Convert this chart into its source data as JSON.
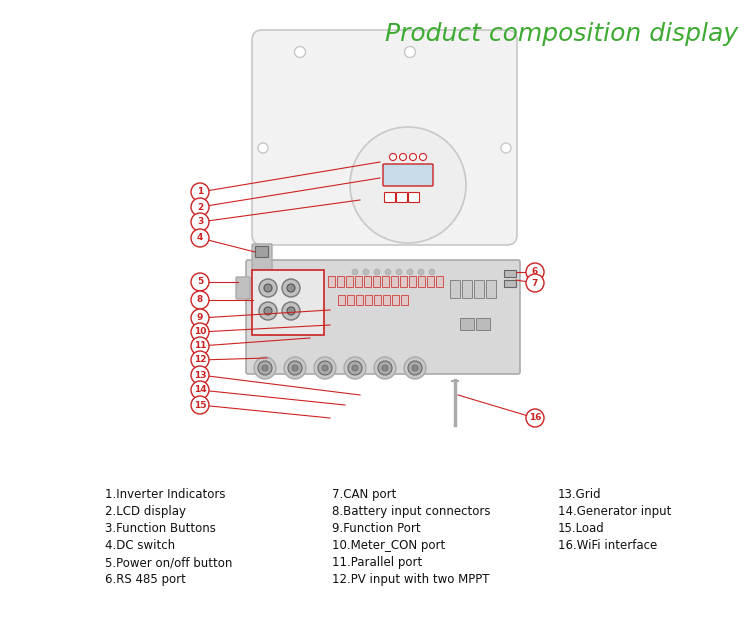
{
  "title": "Product composition display",
  "title_color": "#3daa32",
  "title_fontsize": 18,
  "bg_color": "#ffffff",
  "legend_col1": [
    "1.Inverter Indicators",
    "2.LCD display",
    "3.Function Buttons",
    "4.DC switch",
    "5.Power on/off button",
    "6.RS 485 port"
  ],
  "legend_col2": [
    "7.CAN port",
    "8.Battery input connectors",
    "9.Function Port",
    "10.Meter_CON port",
    "11.Parallel port",
    "12.PV input with two MPPT"
  ],
  "legend_col3": [
    "13.Grid",
    "14.Generator input",
    "15.Load",
    "16.WiFi interface"
  ],
  "red": "#cc2222",
  "light_gray": "#c8c8c8",
  "mid_gray": "#aaaaaa",
  "dark_gray": "#666666",
  "body_fill": "#efefef",
  "panel_fill": "#d8d8d8"
}
